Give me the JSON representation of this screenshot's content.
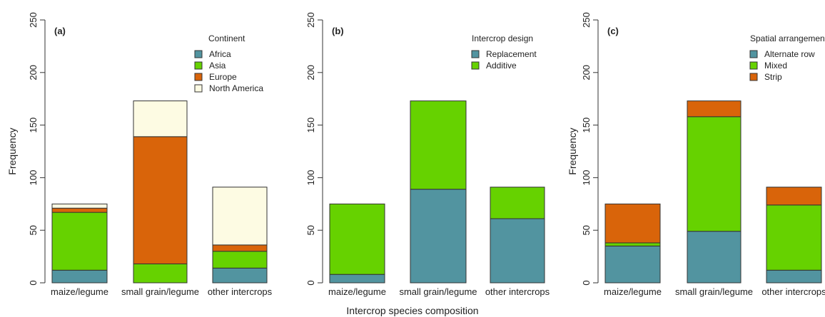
{
  "figure": {
    "xlabel_shared": "Intercrop species composition"
  },
  "chart_data": [
    {
      "type": "bar",
      "stacked": true,
      "panel_label": "(a)",
      "ylabel": "Frequency",
      "ylim": [
        0,
        250
      ],
      "yticks": [
        0,
        50,
        100,
        150,
        200,
        250
      ],
      "categories": [
        "maize/legume",
        "small grain/legume",
        "other intercrops"
      ],
      "legend_title": "Continent",
      "legend_position": "top-right",
      "series": [
        {
          "name": "Africa",
          "color": "#5294a0",
          "values": [
            12,
            0,
            14
          ]
        },
        {
          "name": "Asia",
          "color": "#66d200",
          "values": [
            55,
            18,
            16
          ]
        },
        {
          "name": "Europe",
          "color": "#d9640a",
          "values": [
            4,
            121,
            6
          ]
        },
        {
          "name": "North America",
          "color": "#fdfbe3",
          "values": [
            4,
            34,
            55
          ]
        }
      ]
    },
    {
      "type": "bar",
      "stacked": true,
      "panel_label": "(b)",
      "ylabel": "",
      "ylim": [
        0,
        250
      ],
      "yticks": [
        0,
        50,
        100,
        150,
        200,
        250
      ],
      "categories": [
        "maize/legume",
        "small grain/legume",
        "other intercrops"
      ],
      "legend_title": "Intercrop design",
      "legend_position": "top-right",
      "series": [
        {
          "name": "Replacement",
          "color": "#5294a0",
          "values": [
            8,
            89,
            61
          ]
        },
        {
          "name": "Additive",
          "color": "#66d200",
          "values": [
            67,
            84,
            30
          ]
        }
      ]
    },
    {
      "type": "bar",
      "stacked": true,
      "panel_label": "(c)",
      "ylabel": "Frequency",
      "ylim": [
        0,
        250
      ],
      "yticks": [
        0,
        50,
        100,
        150,
        200,
        250
      ],
      "categories": [
        "maize/legume",
        "small grain/legume",
        "other intercrops"
      ],
      "legend_title": "Spatial arrangement",
      "legend_position": "top-right",
      "series": [
        {
          "name": "Alternate row",
          "color": "#5294a0",
          "values": [
            35,
            49,
            12
          ]
        },
        {
          "name": "Mixed",
          "color": "#66d200",
          "values": [
            3,
            109,
            62
          ]
        },
        {
          "name": "Strip",
          "color": "#d9640a",
          "values": [
            37,
            15,
            17
          ]
        }
      ]
    }
  ]
}
